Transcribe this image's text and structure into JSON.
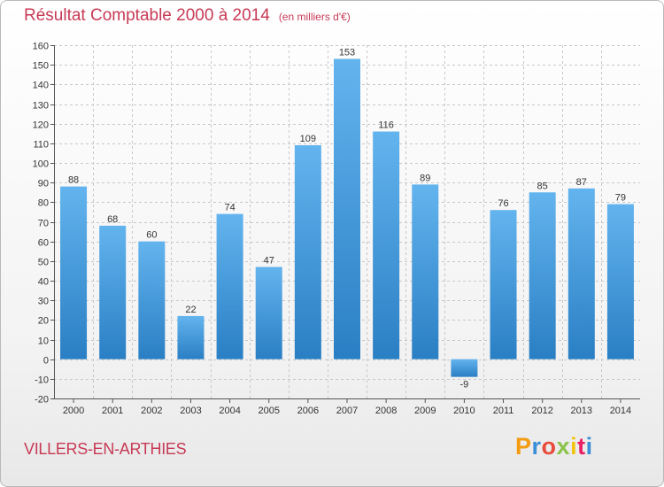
{
  "header": {
    "title": "Résultat Comptable 2000 à 2014",
    "unit": "(en milliers d'€)"
  },
  "commune": "VILLERS-EN-ARTHIES",
  "logo": {
    "text": "Proxiti",
    "letters": [
      {
        "char": "P",
        "color": "#f39c12"
      },
      {
        "char": "r",
        "color": "#3a8fd6"
      },
      {
        "char": "o",
        "color": "#e74c3c"
      },
      {
        "char": "x",
        "color": "#8bc34a"
      },
      {
        "char": "i",
        "color": "#f1c40f"
      },
      {
        "char": "t",
        "color": "#e91e63"
      },
      {
        "char": "i",
        "color": "#3a8fd6"
      }
    ]
  },
  "colors": {
    "bar_light": "#63b4ee",
    "bar_dark": "#2a7fc4",
    "title": "#c73a56",
    "grid": "#c8c8c8"
  },
  "chart_data": {
    "type": "bar",
    "title": "Résultat Comptable 2000 à 2014",
    "subtitle": "(en milliers d'€)",
    "xlabel": "",
    "ylabel": "",
    "categories": [
      "2000",
      "2001",
      "2002",
      "2003",
      "2004",
      "2005",
      "2006",
      "2007",
      "2008",
      "2009",
      "2010",
      "2011",
      "2012",
      "2013",
      "2014"
    ],
    "values": [
      88,
      68,
      60,
      22,
      74,
      47,
      109,
      153,
      116,
      89,
      -9,
      76,
      85,
      87,
      79
    ],
    "ylim": [
      -20,
      160
    ],
    "yticks": [
      -20,
      -10,
      0,
      10,
      20,
      30,
      40,
      50,
      60,
      70,
      80,
      90,
      100,
      110,
      120,
      130,
      140,
      150,
      160
    ],
    "grid": true
  }
}
